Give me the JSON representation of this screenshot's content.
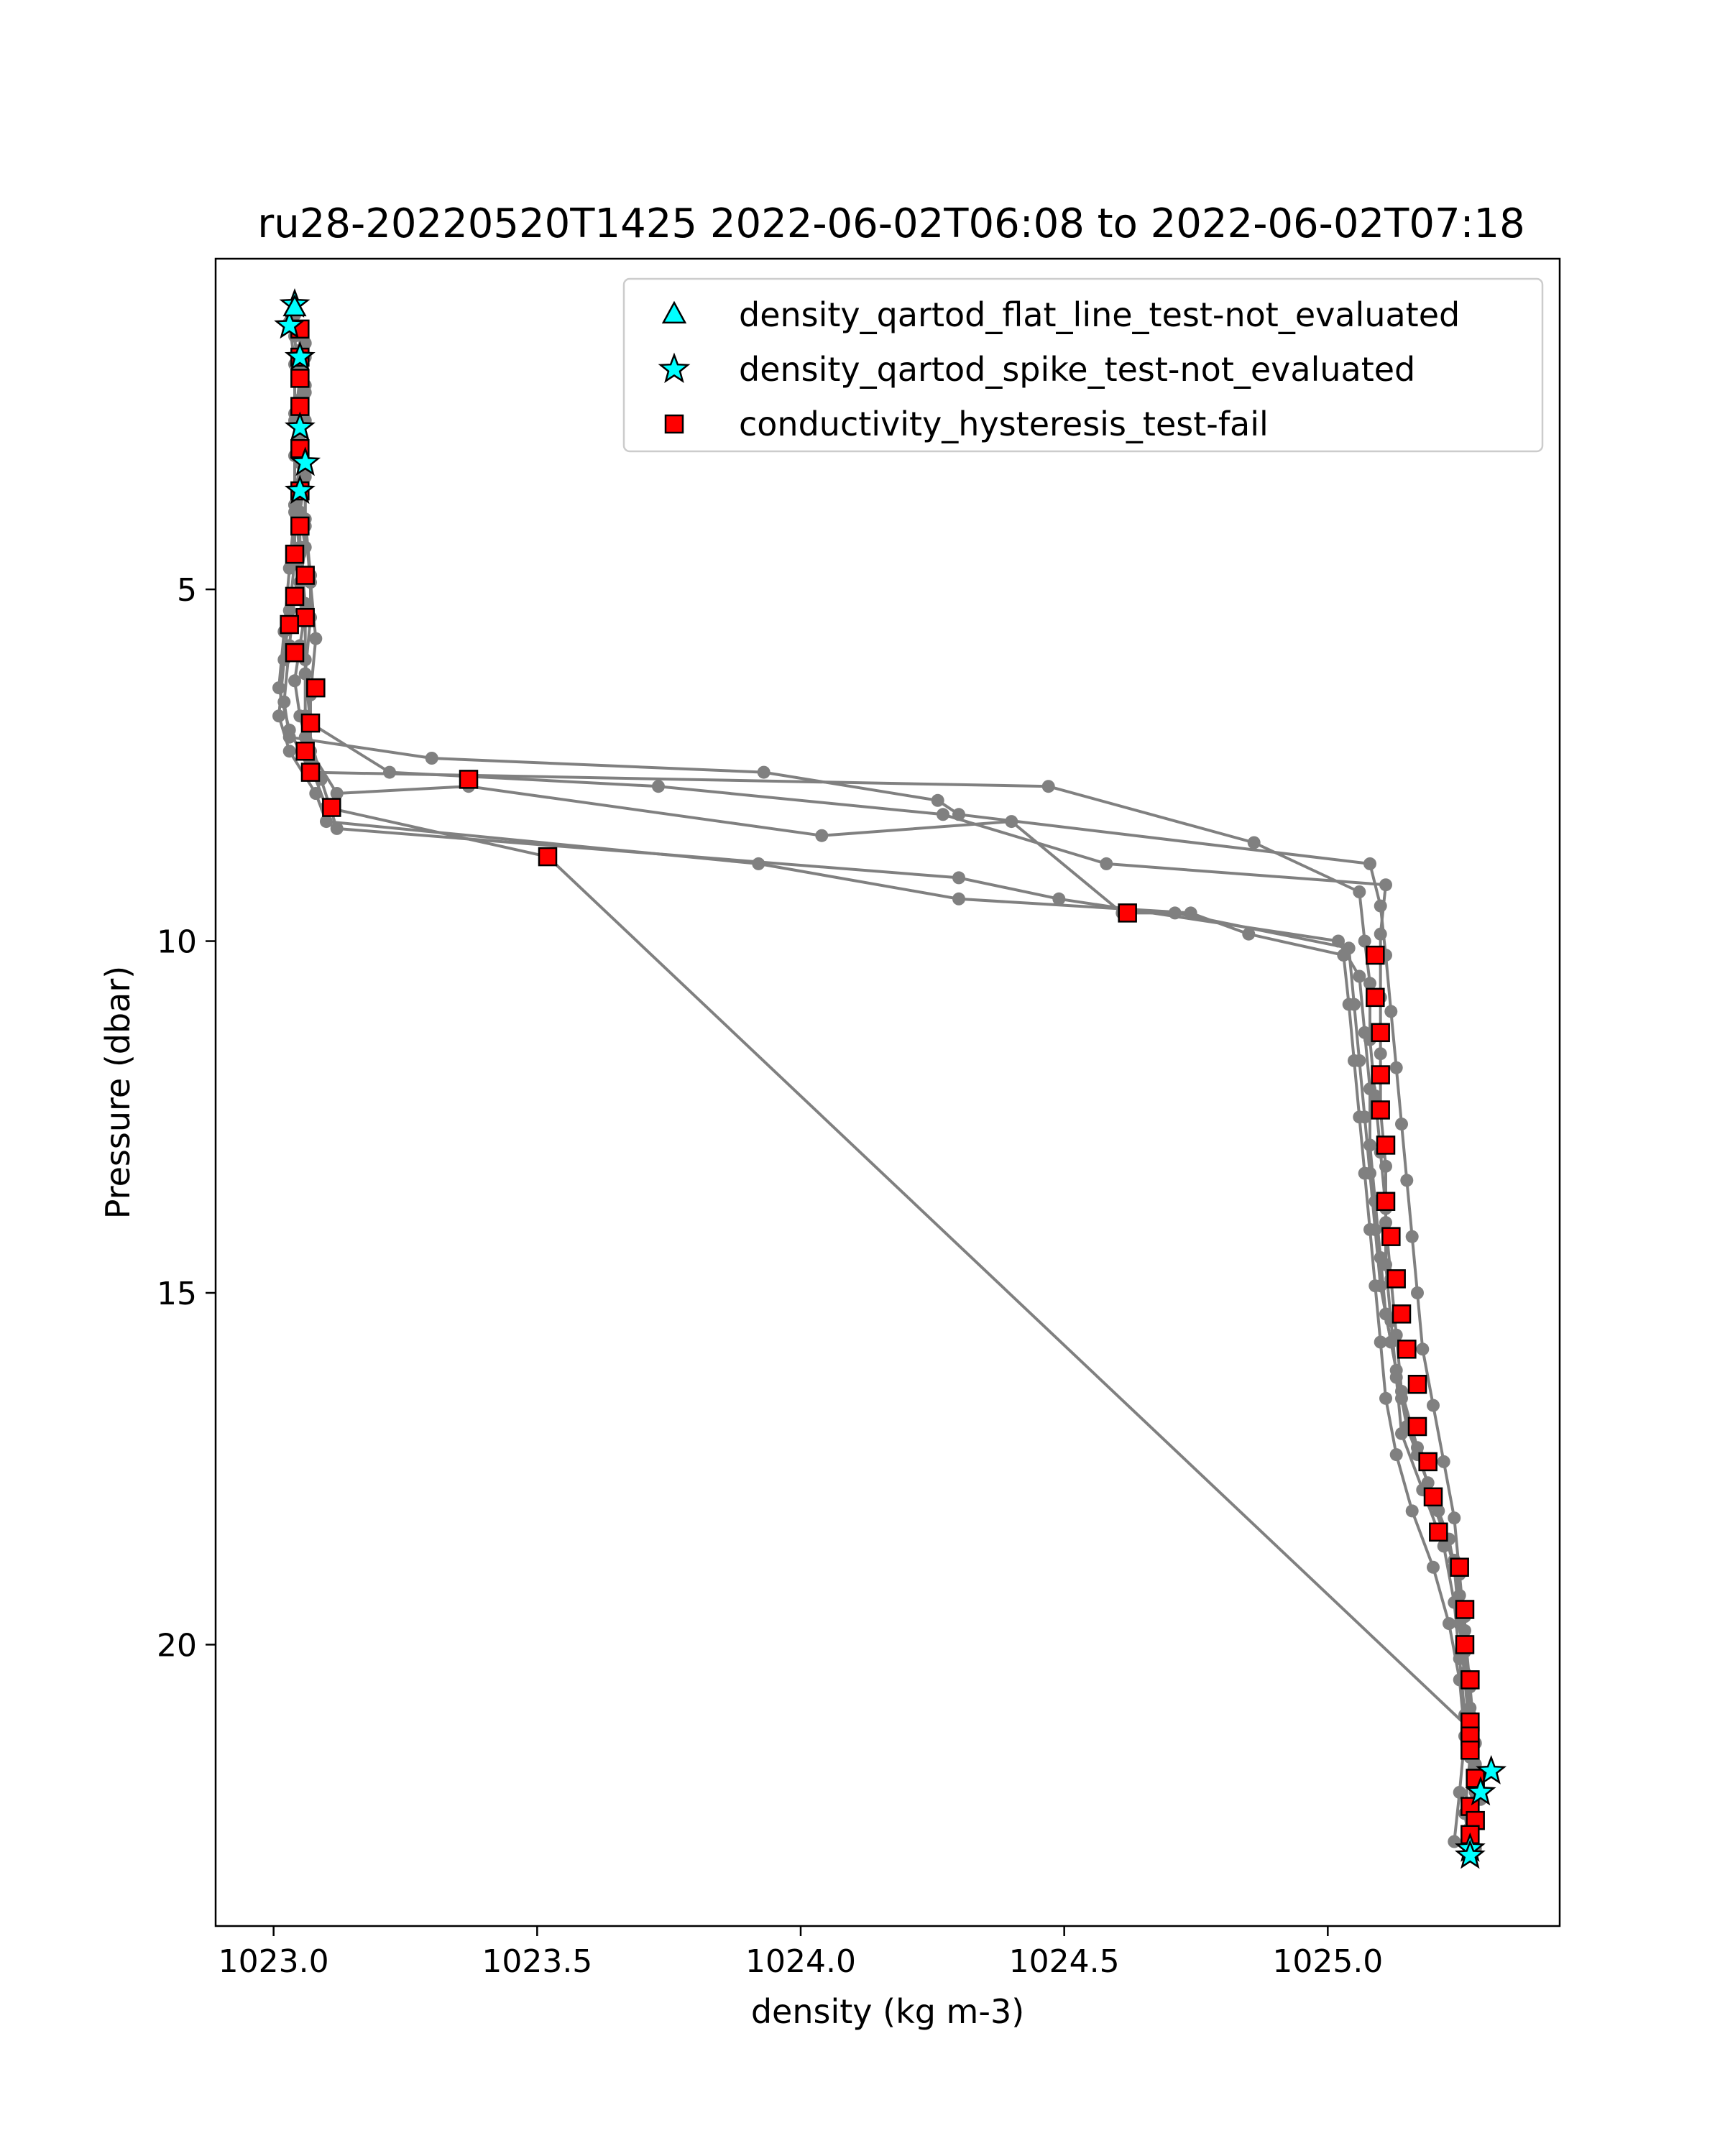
{
  "chart_data": {
    "type": "scatter",
    "title": "ru28-20220520T1425 2022-06-02T06:08 to 2022-06-02T07:18",
    "xlabel": "density (kg m-3)",
    "ylabel": "Pressure (dbar)",
    "xlim": [
      1022.89,
      1025.44
    ],
    "ylim": [
      24.0,
      0.3
    ],
    "y_inverted": true,
    "grid": false,
    "legend_position": "top-right",
    "x_ticks": [
      "1023.0",
      "1023.5",
      "1024.0",
      "1024.5",
      "1025.0"
    ],
    "x_tick_values": [
      1023.0,
      1023.5,
      1024.0,
      1024.5,
      1025.0
    ],
    "y_ticks": [
      "5",
      "10",
      "15",
      "20"
    ],
    "y_tick_values": [
      5,
      10,
      15,
      20
    ],
    "colors": {
      "profile_line": "#808080",
      "flat_line_marker": "#00ffff",
      "spike_marker": "#00ffff",
      "hysteresis_marker": "#ff0000",
      "marker_edge": "#000000"
    },
    "profiles": [
      {
        "points": [
          [
            1023.04,
            1.1
          ],
          [
            1023.05,
            1.3
          ],
          [
            1023.05,
            1.8
          ],
          [
            1023.06,
            2.2
          ],
          [
            1023.05,
            2.8
          ],
          [
            1023.06,
            3.4
          ],
          [
            1023.05,
            3.9
          ],
          [
            1023.06,
            4.4
          ],
          [
            1023.05,
            4.9
          ],
          [
            1023.06,
            5.3
          ],
          [
            1023.05,
            5.8
          ],
          [
            1023.04,
            6.3
          ],
          [
            1023.05,
            6.8
          ],
          [
            1023.06,
            7.1
          ],
          [
            1023.07,
            7.5
          ],
          [
            1023.1,
            8.1
          ],
          [
            1023.52,
            8.8
          ],
          [
            1025.27,
            21.2
          ],
          [
            1025.28,
            21.8
          ],
          [
            1025.27,
            22.3
          ],
          [
            1025.28,
            22.9
          ]
        ]
      },
      {
        "points": [
          [
            1023.05,
            1.3
          ],
          [
            1023.05,
            2.0
          ],
          [
            1023.04,
            2.6
          ],
          [
            1023.05,
            3.2
          ],
          [
            1023.04,
            3.8
          ],
          [
            1023.05,
            4.5
          ],
          [
            1023.04,
            5.1
          ],
          [
            1023.03,
            5.8
          ],
          [
            1023.02,
            6.6
          ],
          [
            1023.03,
            7.1
          ],
          [
            1023.3,
            7.4
          ],
          [
            1023.93,
            7.6
          ],
          [
            1024.26,
            8.0
          ],
          [
            1024.3,
            8.2
          ],
          [
            1025.08,
            8.9
          ],
          [
            1025.1,
            9.5
          ],
          [
            1025.11,
            10.2
          ],
          [
            1025.12,
            11.0
          ],
          [
            1025.13,
            11.8
          ],
          [
            1025.14,
            12.6
          ],
          [
            1025.15,
            13.4
          ],
          [
            1025.16,
            14.2
          ],
          [
            1025.17,
            15.0
          ],
          [
            1025.18,
            15.8
          ],
          [
            1025.2,
            16.6
          ],
          [
            1025.22,
            17.4
          ],
          [
            1025.24,
            18.2
          ],
          [
            1025.25,
            19.0
          ],
          [
            1025.26,
            19.8
          ],
          [
            1025.27,
            20.6
          ],
          [
            1025.28,
            21.4
          ],
          [
            1025.29,
            22.2
          ]
        ]
      },
      {
        "points": [
          [
            1023.06,
            1.5
          ],
          [
            1023.06,
            2.1
          ],
          [
            1023.05,
            2.7
          ],
          [
            1023.06,
            3.3
          ],
          [
            1023.06,
            4.0
          ],
          [
            1023.07,
            4.8
          ],
          [
            1023.07,
            5.4
          ],
          [
            1023.06,
            6.2
          ],
          [
            1023.07,
            6.9
          ],
          [
            1023.22,
            7.6
          ],
          [
            1023.73,
            7.8
          ],
          [
            1024.27,
            8.2
          ],
          [
            1024.58,
            8.9
          ],
          [
            1025.11,
            9.2
          ],
          [
            1025.1,
            9.9
          ],
          [
            1025.1,
            10.8
          ],
          [
            1025.1,
            11.6
          ],
          [
            1025.1,
            12.4
          ],
          [
            1025.11,
            13.2
          ],
          [
            1025.11,
            14.0
          ],
          [
            1025.12,
            14.8
          ],
          [
            1025.13,
            15.6
          ],
          [
            1025.14,
            16.4
          ],
          [
            1025.17,
            17.2
          ],
          [
            1025.2,
            18.0
          ],
          [
            1025.24,
            18.8
          ],
          [
            1025.26,
            19.6
          ],
          [
            1025.26,
            20.4
          ],
          [
            1025.27,
            21.0
          ],
          [
            1025.28,
            22.0
          ],
          [
            1025.27,
            22.6
          ]
        ]
      },
      {
        "points": [
          [
            1023.03,
            1.2
          ],
          [
            1023.04,
            1.8
          ],
          [
            1023.04,
            2.5
          ],
          [
            1023.04,
            3.1
          ],
          [
            1023.04,
            3.8
          ],
          [
            1023.04,
            4.6
          ],
          [
            1023.03,
            5.3
          ],
          [
            1023.02,
            6.0
          ],
          [
            1023.01,
            6.8
          ],
          [
            1023.03,
            7.3
          ],
          [
            1023.08,
            7.9
          ],
          [
            1023.1,
            8.3
          ],
          [
            1023.92,
            8.9
          ],
          [
            1024.3,
            9.4
          ],
          [
            1024.74,
            9.6
          ],
          [
            1024.85,
            9.9
          ],
          [
            1025.03,
            10.2
          ],
          [
            1025.04,
            10.9
          ],
          [
            1025.05,
            11.7
          ],
          [
            1025.06,
            12.5
          ],
          [
            1025.07,
            13.3
          ],
          [
            1025.08,
            14.1
          ],
          [
            1025.09,
            14.9
          ],
          [
            1025.1,
            15.7
          ],
          [
            1025.11,
            16.5
          ],
          [
            1025.13,
            17.3
          ],
          [
            1025.16,
            18.1
          ],
          [
            1025.2,
            18.9
          ],
          [
            1025.23,
            19.7
          ],
          [
            1025.25,
            20.5
          ],
          [
            1025.26,
            21.3
          ],
          [
            1025.25,
            22.1
          ],
          [
            1025.24,
            22.8
          ]
        ]
      },
      {
        "points": [
          [
            1023.04,
            1.4
          ],
          [
            1023.05,
            2.3
          ],
          [
            1023.05,
            3.1
          ],
          [
            1023.04,
            3.9
          ],
          [
            1023.03,
            4.7
          ],
          [
            1023.02,
            5.6
          ],
          [
            1023.01,
            6.4
          ],
          [
            1023.03,
            7.0
          ],
          [
            1023.07,
            7.6
          ],
          [
            1024.47,
            7.8
          ],
          [
            1024.86,
            8.6
          ],
          [
            1025.06,
            9.3
          ],
          [
            1025.07,
            10.0
          ],
          [
            1025.08,
            10.6
          ],
          [
            1025.08,
            11.4
          ],
          [
            1025.09,
            12.2
          ],
          [
            1025.1,
            13.0
          ],
          [
            1025.11,
            13.8
          ],
          [
            1025.11,
            14.6
          ],
          [
            1025.12,
            15.4
          ],
          [
            1025.13,
            16.2
          ],
          [
            1025.14,
            17.0
          ],
          [
            1025.18,
            17.8
          ],
          [
            1025.22,
            18.6
          ],
          [
            1025.24,
            19.4
          ],
          [
            1025.25,
            20.2
          ],
          [
            1025.26,
            21.0
          ],
          [
            1025.27,
            21.6
          ],
          [
            1025.26,
            22.4
          ],
          [
            1025.27,
            22.9
          ]
        ]
      },
      {
        "points": [
          [
            1023.05,
            1.6
          ],
          [
            1023.05,
            2.4
          ],
          [
            1023.06,
            3.2
          ],
          [
            1023.06,
            4.1
          ],
          [
            1023.07,
            4.9
          ],
          [
            1023.08,
            5.7
          ],
          [
            1023.07,
            6.5
          ],
          [
            1023.07,
            7.3
          ],
          [
            1023.12,
            7.9
          ],
          [
            1023.37,
            7.8
          ],
          [
            1024.04,
            8.5
          ],
          [
            1024.4,
            8.3
          ],
          [
            1024.61,
            9.6
          ],
          [
            1024.71,
            9.6
          ],
          [
            1025.04,
            10.1
          ],
          [
            1025.05,
            10.9
          ],
          [
            1025.06,
            11.7
          ],
          [
            1025.07,
            12.5
          ],
          [
            1025.08,
            13.3
          ],
          [
            1025.09,
            14.1
          ],
          [
            1025.1,
            14.9
          ],
          [
            1025.12,
            15.7
          ],
          [
            1025.14,
            16.5
          ],
          [
            1025.17,
            17.3
          ],
          [
            1025.21,
            18.1
          ],
          [
            1025.24,
            18.9
          ],
          [
            1025.25,
            19.7
          ],
          [
            1025.26,
            20.5
          ],
          [
            1025.27,
            21.3
          ],
          [
            1025.28,
            22.1
          ]
        ]
      },
      {
        "points": [
          [
            1023.06,
            1.7
          ],
          [
            1023.06,
            2.6
          ],
          [
            1023.05,
            3.5
          ],
          [
            1023.05,
            4.4
          ],
          [
            1023.06,
            5.2
          ],
          [
            1023.06,
            6.0
          ],
          [
            1023.06,
            6.8
          ],
          [
            1023.09,
            7.7
          ],
          [
            1023.12,
            8.4
          ],
          [
            1024.3,
            9.1
          ],
          [
            1024.49,
            9.4
          ],
          [
            1025.02,
            10.0
          ],
          [
            1025.06,
            10.5
          ],
          [
            1025.07,
            11.3
          ],
          [
            1025.08,
            12.1
          ],
          [
            1025.08,
            12.9
          ],
          [
            1025.09,
            13.7
          ],
          [
            1025.1,
            14.5
          ],
          [
            1025.11,
            15.3
          ],
          [
            1025.13,
            16.1
          ],
          [
            1025.15,
            16.9
          ],
          [
            1025.19,
            17.7
          ],
          [
            1025.23,
            18.5
          ],
          [
            1025.25,
            19.3
          ],
          [
            1025.26,
            20.1
          ],
          [
            1025.27,
            20.9
          ],
          [
            1025.28,
            21.7
          ],
          [
            1025.28,
            22.5
          ]
        ]
      }
    ],
    "series": [
      {
        "name": "density_qartod_flat_line_test-not_evaluated",
        "marker": "triangle",
        "points": [
          [
            1023.04,
            1.0
          ]
        ]
      },
      {
        "name": "density_qartod_spike_test-not_evaluated",
        "marker": "star",
        "points": [
          [
            1023.04,
            0.95
          ],
          [
            1023.03,
            1.25
          ],
          [
            1023.05,
            1.7
          ],
          [
            1023.05,
            2.7
          ],
          [
            1023.06,
            3.2
          ],
          [
            1023.05,
            3.6
          ],
          [
            1025.31,
            21.8
          ],
          [
            1025.29,
            22.1
          ],
          [
            1025.27,
            22.9
          ],
          [
            1025.27,
            23.0
          ]
        ]
      },
      {
        "name": "conductivity_hysteresis_test-fail",
        "marker": "square",
        "points": [
          [
            1023.05,
            1.3
          ],
          [
            1023.05,
            1.7
          ],
          [
            1023.05,
            2.0
          ],
          [
            1023.05,
            2.4
          ],
          [
            1023.05,
            3.0
          ],
          [
            1023.05,
            3.6
          ],
          [
            1023.05,
            4.1
          ],
          [
            1023.04,
            4.5
          ],
          [
            1023.06,
            4.8
          ],
          [
            1023.04,
            5.1
          ],
          [
            1023.06,
            5.4
          ],
          [
            1023.03,
            5.5
          ],
          [
            1023.04,
            5.9
          ],
          [
            1023.08,
            6.4
          ],
          [
            1023.07,
            6.9
          ],
          [
            1023.06,
            7.3
          ],
          [
            1023.07,
            7.6
          ],
          [
            1023.11,
            8.1
          ],
          [
            1023.37,
            7.7
          ],
          [
            1023.52,
            8.8
          ],
          [
            1024.62,
            9.6
          ],
          [
            1025.09,
            10.2
          ],
          [
            1025.09,
            10.8
          ],
          [
            1025.1,
            11.3
          ],
          [
            1025.1,
            11.9
          ],
          [
            1025.1,
            12.4
          ],
          [
            1025.11,
            12.9
          ],
          [
            1025.11,
            13.7
          ],
          [
            1025.12,
            14.2
          ],
          [
            1025.13,
            14.8
          ],
          [
            1025.14,
            15.3
          ],
          [
            1025.15,
            15.8
          ],
          [
            1025.17,
            16.3
          ],
          [
            1025.17,
            16.9
          ],
          [
            1025.19,
            17.4
          ],
          [
            1025.2,
            17.9
          ],
          [
            1025.21,
            18.4
          ],
          [
            1025.25,
            18.9
          ],
          [
            1025.26,
            19.5
          ],
          [
            1025.26,
            20.0
          ],
          [
            1025.27,
            20.5
          ],
          [
            1025.27,
            21.1
          ],
          [
            1025.27,
            21.3
          ],
          [
            1025.27,
            21.5
          ],
          [
            1025.28,
            21.9
          ],
          [
            1025.27,
            22.3
          ],
          [
            1025.28,
            22.5
          ],
          [
            1025.27,
            22.7
          ]
        ]
      }
    ]
  }
}
